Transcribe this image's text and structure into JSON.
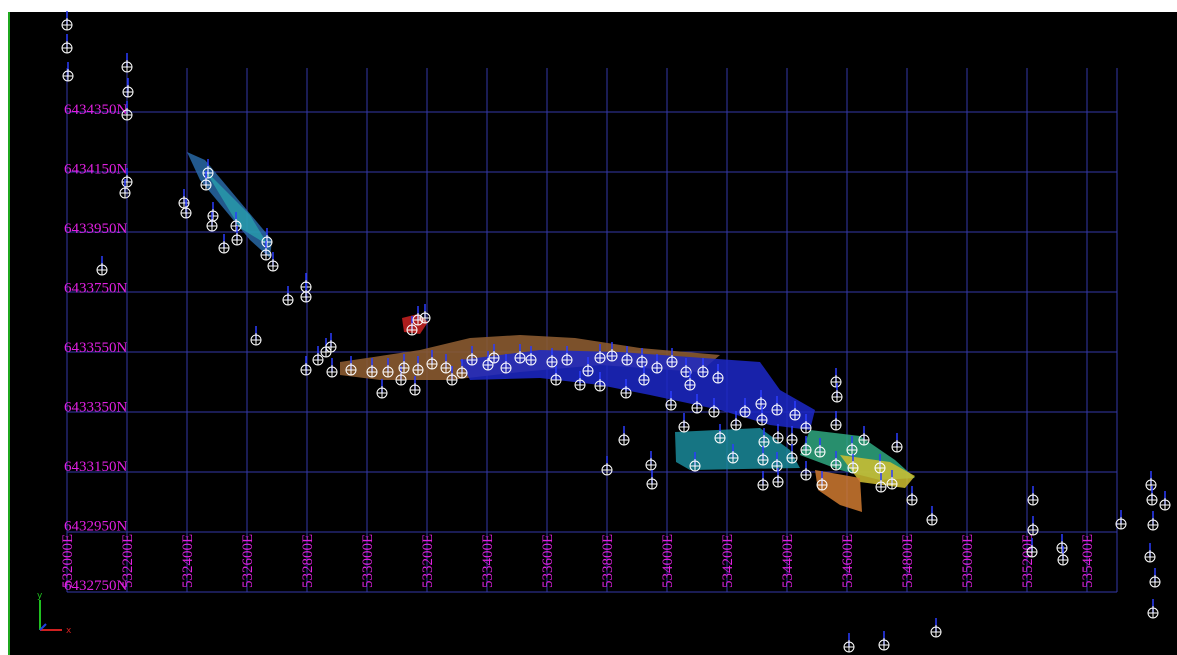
{
  "view": {
    "northing_labels": [
      "6434350N",
      "6434150N",
      "6433950N",
      "6433750N",
      "6433550N",
      "6433350N",
      "6433150N",
      "6432950N",
      "6432750N"
    ],
    "easting_labels": [
      "532000E",
      "532200E",
      "532400E",
      "532600E",
      "532800E",
      "533000E",
      "533200E",
      "533400E",
      "533600E",
      "533800E",
      "534000E",
      "534200E",
      "534400E",
      "534600E",
      "534800E",
      "535000E",
      "535200E",
      "535400E"
    ],
    "axis_labels": {
      "y": "y",
      "x": "x"
    }
  }
}
